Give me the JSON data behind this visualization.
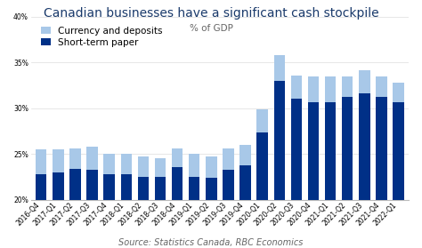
{
  "title": "Canadian businesses have a significant cash stockpile",
  "subtitle": "% of GDP",
  "source": "Source: Statistics Canada, RBC Economics",
  "categories": [
    "2016-Q4",
    "2017-Q1",
    "2017-Q2",
    "2017-Q3",
    "2017-Q4",
    "2018-Q1",
    "2018-Q2",
    "2018-Q3",
    "2018-Q4",
    "2019-Q1",
    "2019-Q2",
    "2019-Q3",
    "2019-Q4",
    "2020-Q1",
    "2020-Q2",
    "2020-Q3",
    "2020-Q4",
    "2021-Q1",
    "2021-Q2",
    "2021-Q3",
    "2021-Q4",
    "2022-Q1"
  ],
  "short_term_paper": [
    22.8,
    23.0,
    23.4,
    23.3,
    22.8,
    22.8,
    22.5,
    22.5,
    23.5,
    22.5,
    22.4,
    23.3,
    23.7,
    27.3,
    33.0,
    31.0,
    30.6,
    30.6,
    31.2,
    31.6,
    31.2,
    30.6
  ],
  "currency_deposits": [
    2.7,
    2.5,
    2.2,
    2.5,
    2.2,
    2.2,
    2.2,
    2.0,
    2.1,
    2.5,
    2.3,
    2.3,
    2.3,
    2.6,
    2.8,
    2.5,
    2.8,
    2.8,
    2.2,
    2.5,
    2.2,
    2.2
  ],
  "bar_color_dark": "#003087",
  "bar_color_light": "#a8c8e8",
  "ylim_min": 20,
  "ylim_max": 40,
  "yticks": [
    20,
    25,
    30,
    35,
    40
  ],
  "baseline": 20,
  "background_color": "#ffffff",
  "legend_labels": [
    "Currency and deposits",
    "Short-term paper"
  ],
  "title_fontsize": 10,
  "subtitle_fontsize": 7.5,
  "source_fontsize": 7,
  "tick_fontsize": 5.5,
  "legend_fontsize": 7.5
}
